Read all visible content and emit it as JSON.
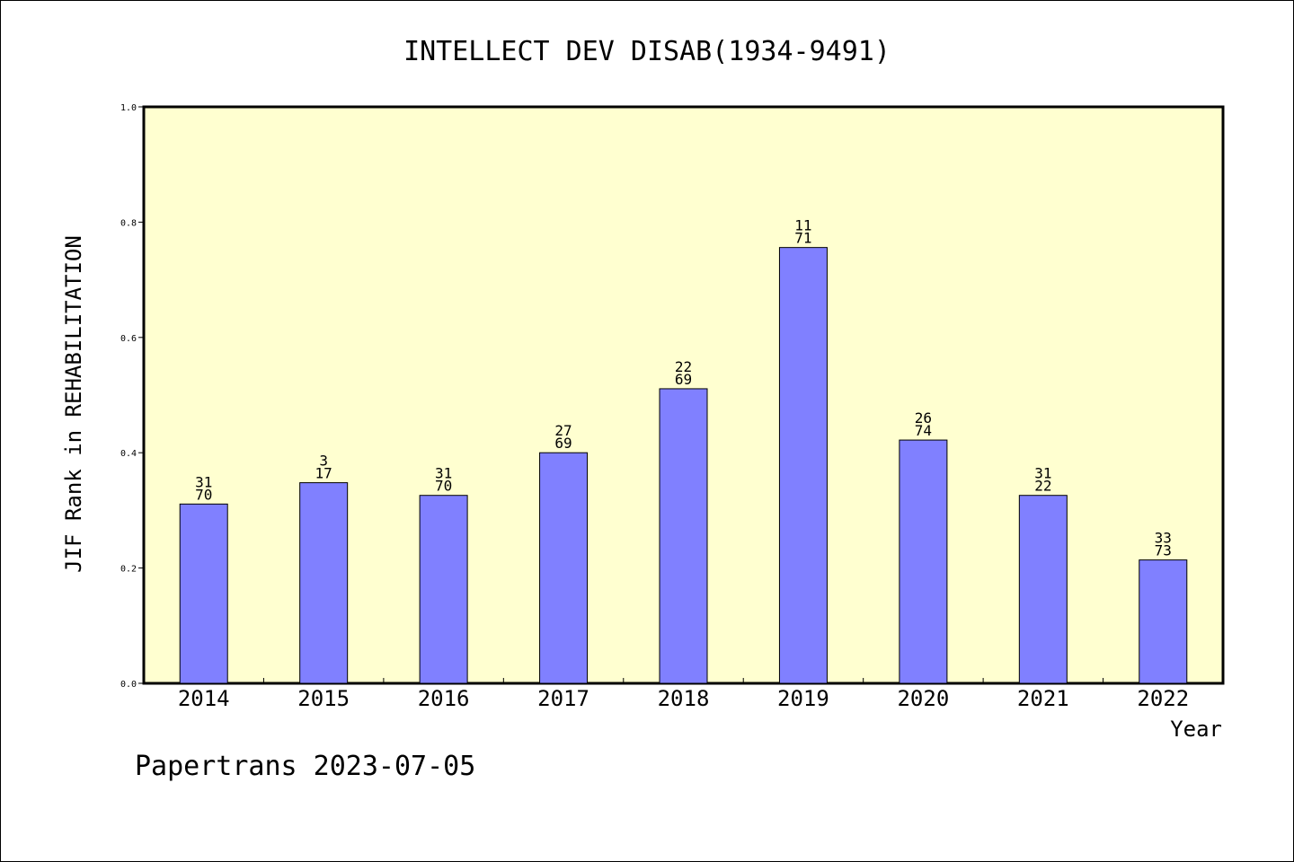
{
  "chart_data": {
    "type": "bar",
    "title": "INTELLECT DEV DISAB(1934-9491)",
    "xlabel": "Year",
    "ylabel": "JIF Rank in REHABILITATION",
    "ylim": [
      0,
      1.0
    ],
    "yticks": [
      "0.0",
      "0.2",
      "0.4",
      "0.6",
      "0.8",
      "1.0"
    ],
    "ytick_values": [
      0,
      0.2,
      0.4,
      0.6,
      0.8,
      1.0
    ],
    "categories": [
      "2014",
      "2015",
      "2016",
      "2017",
      "2018",
      "2019",
      "2020",
      "2021",
      "2022"
    ],
    "values": [
      0.311,
      0.348,
      0.326,
      0.4,
      0.511,
      0.756,
      0.422,
      0.326,
      0.214
    ],
    "rank_labels": [
      {
        "rank": "31",
        "total": "70"
      },
      {
        "rank": "3",
        "total": "17"
      },
      {
        "rank": "31",
        "total": "70"
      },
      {
        "rank": "27",
        "total": "69"
      },
      {
        "rank": "22",
        "total": "69"
      },
      {
        "rank": "11",
        "total": "71"
      },
      {
        "rank": "26",
        "total": "74"
      },
      {
        "rank": "31",
        "total": "22"
      },
      {
        "rank": "33",
        "total": "73"
      }
    ],
    "grid": false,
    "colors": {
      "bar": "#8080ff",
      "plot_background": "#ffffd0",
      "axis": "#000000"
    }
  },
  "footer": {
    "text": "Papertrans 2023-07-05"
  }
}
